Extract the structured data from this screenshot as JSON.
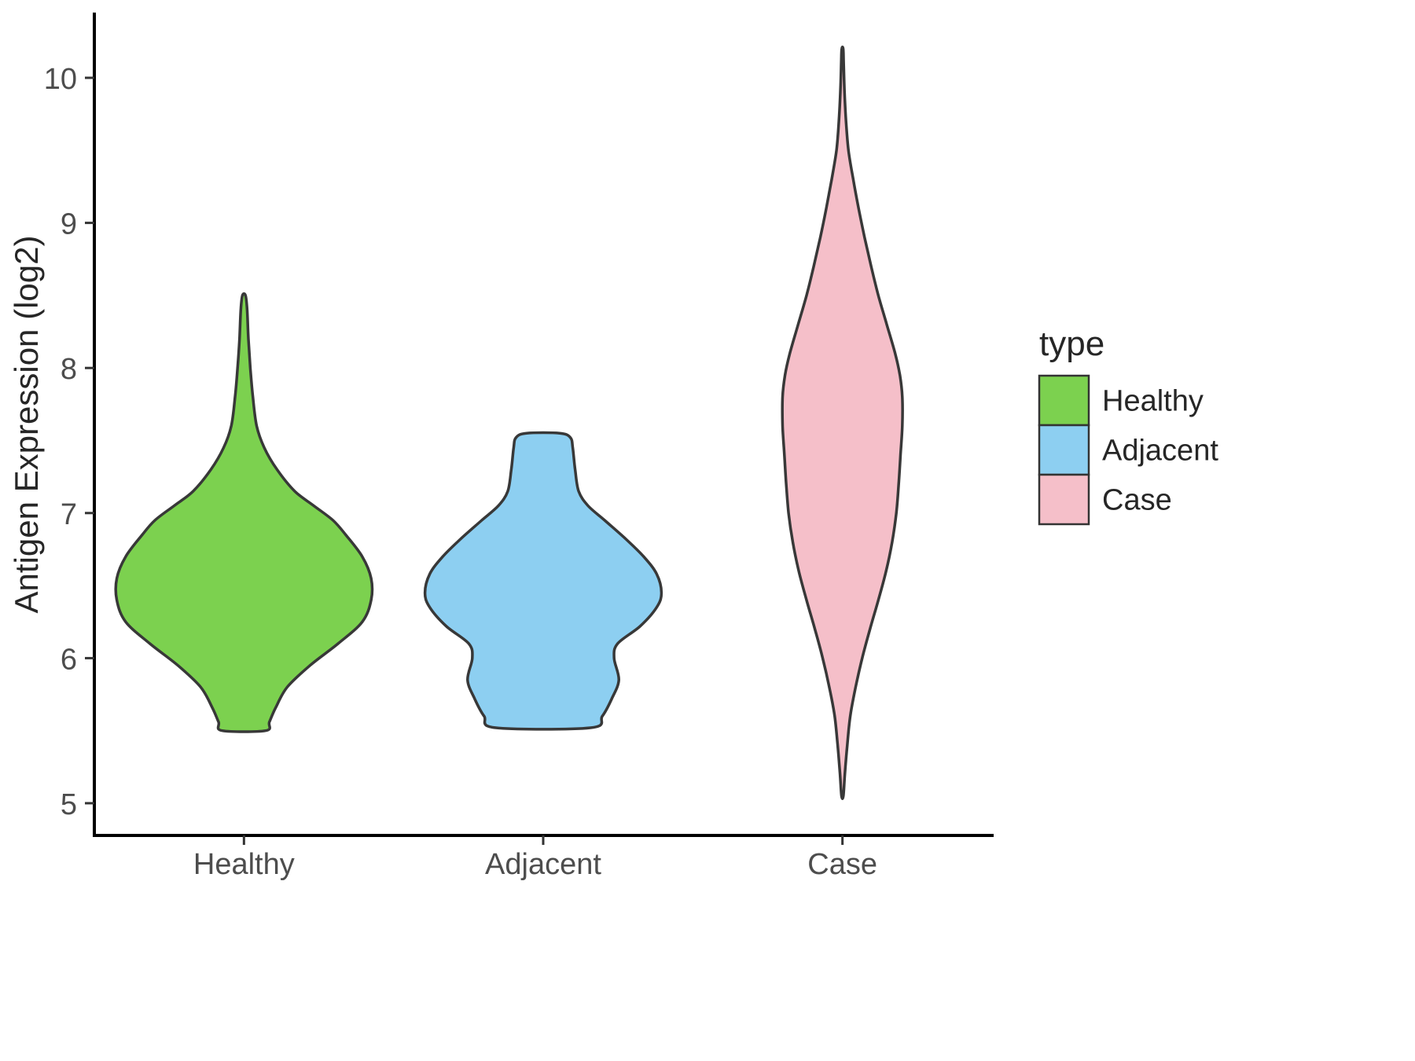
{
  "chart_data": {
    "type": "violin",
    "title": "",
    "xlabel": "",
    "ylabel": "Antigen Expression (log2)",
    "ylim": [
      4.78,
      10.44
    ],
    "yticks": [
      5,
      6,
      7,
      8,
      9,
      10
    ],
    "categories": [
      "Healthy",
      "Adjacent",
      "Case"
    ],
    "grid": "off",
    "background": "#FFFFFF",
    "axis_color": "#000000",
    "tick_label_color": "#4D4D4D",
    "axis_title_color": "#262626",
    "outline_color": "#383838",
    "legend": {
      "title": "type",
      "position": "right",
      "entries": [
        {
          "label": "Healthy",
          "color": "#7CD14F"
        },
        {
          "label": "Adjacent",
          "color": "#8DCFF1"
        },
        {
          "label": "Case",
          "color": "#F5BFC9"
        }
      ]
    },
    "violins": [
      {
        "name": "Healthy",
        "color": "#7CD14F",
        "rel_width": 0.85,
        "range": [
          5.5,
          8.5
        ],
        "profile": [
          [
            5.5,
            0.17
          ],
          [
            5.56,
            0.2
          ],
          [
            5.66,
            0.25
          ],
          [
            5.8,
            0.34
          ],
          [
            5.95,
            0.52
          ],
          [
            6.1,
            0.74
          ],
          [
            6.25,
            0.93
          ],
          [
            6.4,
            1.0
          ],
          [
            6.55,
            1.0
          ],
          [
            6.7,
            0.93
          ],
          [
            6.85,
            0.8
          ],
          [
            6.95,
            0.7
          ],
          [
            7.05,
            0.55
          ],
          [
            7.15,
            0.4
          ],
          [
            7.3,
            0.26
          ],
          [
            7.45,
            0.16
          ],
          [
            7.6,
            0.1
          ],
          [
            7.8,
            0.07
          ],
          [
            8.0,
            0.05
          ],
          [
            8.2,
            0.035
          ],
          [
            8.4,
            0.025
          ],
          [
            8.5,
            0.012
          ]
        ]
      },
      {
        "name": "Adjacent",
        "color": "#8DCFF1",
        "rel_width": 0.79,
        "range": [
          5.52,
          7.55
        ],
        "profile": [
          [
            5.52,
            0.4
          ],
          [
            5.6,
            0.5
          ],
          [
            5.72,
            0.58
          ],
          [
            5.85,
            0.64
          ],
          [
            6.0,
            0.6
          ],
          [
            6.1,
            0.63
          ],
          [
            6.22,
            0.82
          ],
          [
            6.35,
            0.96
          ],
          [
            6.45,
            1.0
          ],
          [
            6.58,
            0.96
          ],
          [
            6.7,
            0.85
          ],
          [
            6.82,
            0.7
          ],
          [
            6.95,
            0.52
          ],
          [
            7.05,
            0.38
          ],
          [
            7.15,
            0.3
          ],
          [
            7.3,
            0.27
          ],
          [
            7.45,
            0.25
          ],
          [
            7.52,
            0.23
          ],
          [
            7.55,
            0.14
          ]
        ]
      },
      {
        "name": "Case",
        "color": "#F5BFC9",
        "rel_width": 0.4,
        "range": [
          5.05,
          10.2
        ],
        "profile": [
          [
            5.05,
            0.015
          ],
          [
            5.2,
            0.04
          ],
          [
            5.4,
            0.08
          ],
          [
            5.6,
            0.13
          ],
          [
            5.8,
            0.22
          ],
          [
            6.0,
            0.33
          ],
          [
            6.2,
            0.46
          ],
          [
            6.4,
            0.6
          ],
          [
            6.6,
            0.73
          ],
          [
            6.8,
            0.83
          ],
          [
            7.0,
            0.9
          ],
          [
            7.2,
            0.94
          ],
          [
            7.4,
            0.97
          ],
          [
            7.6,
            1.0
          ],
          [
            7.8,
            1.0
          ],
          [
            7.95,
            0.96
          ],
          [
            8.1,
            0.88
          ],
          [
            8.3,
            0.74
          ],
          [
            8.5,
            0.6
          ],
          [
            8.7,
            0.48
          ],
          [
            8.9,
            0.37
          ],
          [
            9.1,
            0.27
          ],
          [
            9.3,
            0.18
          ],
          [
            9.5,
            0.1
          ],
          [
            9.7,
            0.06
          ],
          [
            9.9,
            0.035
          ],
          [
            10.1,
            0.02
          ],
          [
            10.2,
            0.012
          ]
        ]
      }
    ]
  }
}
